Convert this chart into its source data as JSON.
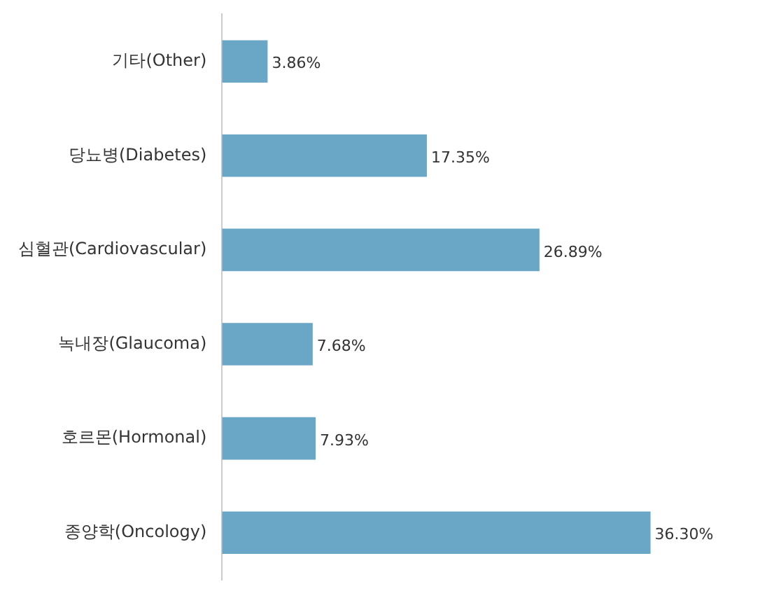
{
  "chart_data": {
    "type": "bar",
    "orientation": "horizontal",
    "categories": [
      "기타(Other)",
      "당뇨병(Diabetes)",
      "심혈관(Cardiovascular)",
      "녹내장(Glaucoma)",
      "호르몬(Hormonal)",
      "종양학(Oncology)"
    ],
    "values": [
      3.86,
      17.35,
      26.89,
      7.68,
      7.93,
      36.3
    ],
    "value_labels": [
      "3.86%",
      "17.35%",
      "26.89%",
      "7.68%",
      "7.93%",
      "36.30%"
    ],
    "color": "#6aa6c6",
    "grid": false,
    "legend": false
  }
}
